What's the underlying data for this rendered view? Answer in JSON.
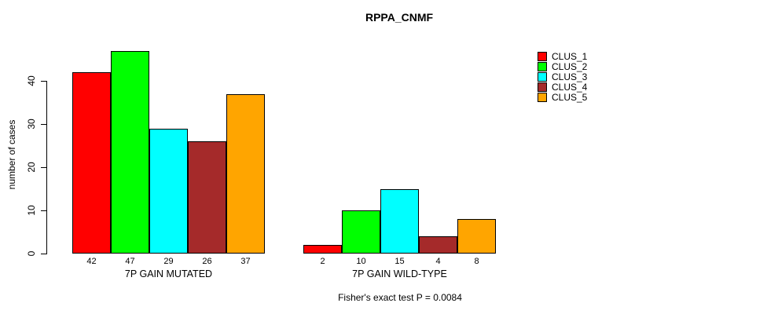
{
  "title": "RPPA_CNMF",
  "y_axis": {
    "label": "number of cases",
    "ticks": [
      0,
      10,
      20,
      30,
      40
    ]
  },
  "footer": "Fisher's exact test P = 0.0084",
  "legend": {
    "position": "right",
    "items": [
      {
        "label": "CLUS_1",
        "color": "#FF0000"
      },
      {
        "label": "CLUS_2",
        "color": "#00FF00"
      },
      {
        "label": "CLUS_3",
        "color": "#00FFFF"
      },
      {
        "label": "CLUS_4",
        "color": "#A52A2A"
      },
      {
        "label": "CLUS_5",
        "color": "#FFA500"
      }
    ]
  },
  "chart_data": {
    "type": "bar",
    "title": "RPPA_CNMF",
    "xlabel": "",
    "ylabel": "number of cases",
    "ylim": [
      0,
      47
    ],
    "yticks": [
      0,
      10,
      20,
      30,
      40
    ],
    "grid": false,
    "legend_position": "right",
    "categories": [
      "7P GAIN MUTATED",
      "7P GAIN WILD-TYPE"
    ],
    "series": [
      {
        "name": "CLUS_1",
        "color": "#FF0000",
        "values": [
          42,
          2
        ]
      },
      {
        "name": "CLUS_2",
        "color": "#00FF00",
        "values": [
          47,
          10
        ]
      },
      {
        "name": "CLUS_3",
        "color": "#00FFFF",
        "values": [
          29,
          15
        ]
      },
      {
        "name": "CLUS_4",
        "color": "#A52A2A",
        "values": [
          26,
          4
        ]
      },
      {
        "name": "CLUS_5",
        "color": "#FFA500",
        "values": [
          37,
          8
        ]
      }
    ],
    "bar_value_labels": true,
    "annotation": "Fisher's exact test P = 0.0084"
  }
}
